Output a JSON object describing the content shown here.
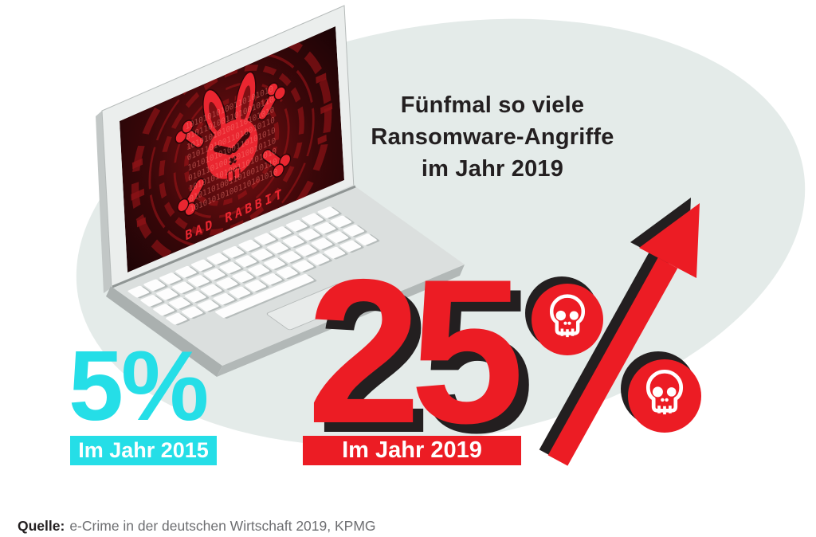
{
  "title": {
    "line1": "Fünfmal so viele",
    "line2": "Ransomware-Angriffe",
    "line3": "im Jahr 2019"
  },
  "stat_2015": {
    "number": "5%",
    "label": "Im Jahr 2015"
  },
  "stat_2019": {
    "number": "25",
    "percent_sign_style": "skull-circles-and-arrow",
    "label": "Im Jahr 2019"
  },
  "laptop_screen": {
    "caption": "BAD RABBIT",
    "binary_a": "10101010100110101010",
    "binary_b": "01011010011010010110"
  },
  "source": {
    "prefix": "Quelle:",
    "text": "e-Crime in der deutschen Wirtschaft 2019, KPMG"
  },
  "colors": {
    "red": "#ec1c24",
    "cyan": "#25dee7",
    "ink": "#231f20",
    "blob": "#e4ebe9"
  },
  "chart_data": {
    "type": "bar",
    "categories": [
      "Im Jahr 2015",
      "Im Jahr 2019"
    ],
    "values": [
      5,
      25
    ],
    "unit": "percent",
    "title": "Fünfmal so viele Ransomware-Angriffe im Jahr 2019",
    "annotations": [
      "5%",
      "25%",
      "BAD RABBIT"
    ],
    "source": "Quelle: e-Crime in der deutschen Wirtschaft 2019, KPMG"
  }
}
